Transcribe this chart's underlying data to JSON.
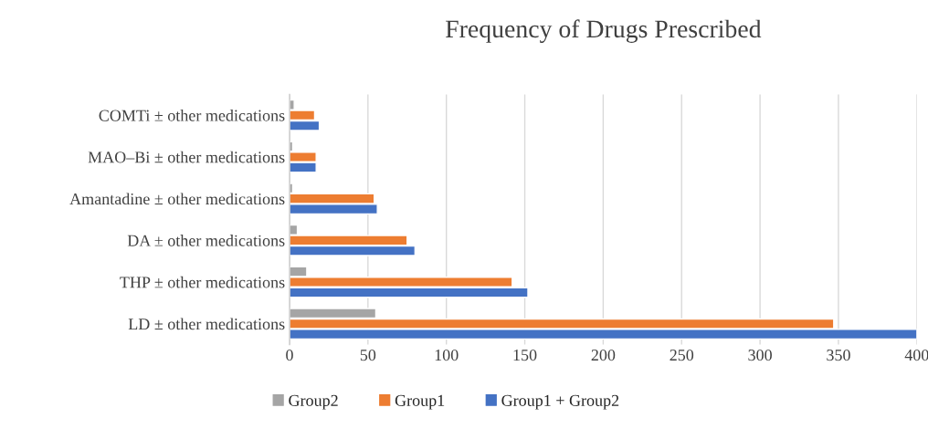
{
  "chart_data": {
    "type": "bar",
    "orientation": "horizontal",
    "title": "Frequency of Drugs Prescribed",
    "categories": [
      "COMTi ± other medications",
      "MAO–Bi ± other medications",
      "Amantadine ± other medications",
      "DA ± other medications",
      "THP ± other medications",
      "LD ± other medications"
    ],
    "series": [
      {
        "name": "Group2",
        "color": "#a5a5a5",
        "values": [
          3,
          2,
          2,
          5,
          11,
          55
        ]
      },
      {
        "name": "Group1",
        "color": "#ed7d31",
        "values": [
          16,
          17,
          54,
          75,
          142,
          347
        ]
      },
      {
        "name": "Group1 + Group2",
        "color": "#4472c4",
        "values": [
          19,
          17,
          56,
          80,
          152,
          400
        ]
      }
    ],
    "xlim": [
      0,
      400
    ],
    "xticks": [
      0,
      50,
      100,
      150,
      200,
      250,
      300,
      350,
      400
    ],
    "grid": "x",
    "legend": "bottom"
  }
}
